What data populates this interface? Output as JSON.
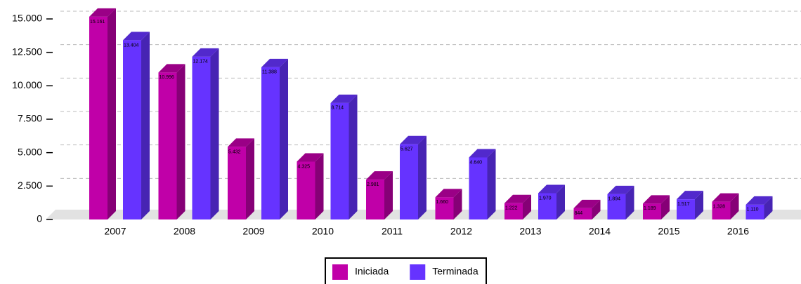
{
  "chart_data": {
    "type": "bar",
    "categories": [
      "2007",
      "2008",
      "2009",
      "2010",
      "2011",
      "2012",
      "2013",
      "2014",
      "2015",
      "2016"
    ],
    "series": [
      {
        "name": "Iniciada",
        "color": "#c000a8",
        "values": [
          15161,
          10996,
          5432,
          4325,
          2981,
          1660,
          1222,
          844,
          1189,
          1328
        ],
        "value_labels": [
          "15.161",
          "10.996",
          "5.432",
          "4.325",
          "2.981",
          "1.660",
          "1.222",
          "844",
          "1.189",
          "1.328"
        ]
      },
      {
        "name": "Terminada",
        "color": "#6633ff",
        "values": [
          13404,
          12174,
          11388,
          8714,
          5627,
          4640,
          1970,
          1894,
          1517,
          1110
        ],
        "value_labels": [
          "13.404",
          "12.174",
          "11.388",
          "8.714",
          "5.627",
          "4.640",
          "1.970",
          "1.894",
          "1.517",
          "1.110"
        ]
      }
    ],
    "ylim": [
      0,
      15000
    ],
    "yticks": [
      0,
      {
        "value": 2500,
        "label": "2.500"
      },
      {
        "value": 5000,
        "label": "5.000"
      },
      {
        "value": 7500,
        "label": "7.500"
      },
      {
        "value": 10000,
        "label": "10.000"
      },
      {
        "value": 12500,
        "label": "12.500"
      },
      {
        "value": 15000,
        "label": "15.000"
      }
    ],
    "grid": true,
    "legend": "bottom"
  }
}
